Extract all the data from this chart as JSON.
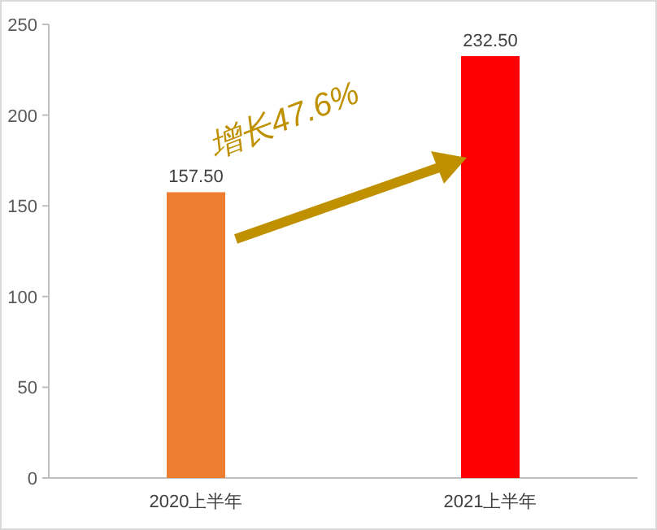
{
  "chart_data": {
    "type": "bar",
    "categories": [
      "2020上半年",
      "2021上半年"
    ],
    "values": [
      157.5,
      232.5
    ],
    "colors": [
      "#ed7d31",
      "#ff0000"
    ],
    "value_labels": [
      "157.50",
      "232.50"
    ],
    "ylim": [
      0,
      250
    ],
    "yticks": [
      0,
      50,
      100,
      150,
      200,
      250
    ],
    "grid": false,
    "annotations": [
      "增长47.6%"
    ]
  }
}
